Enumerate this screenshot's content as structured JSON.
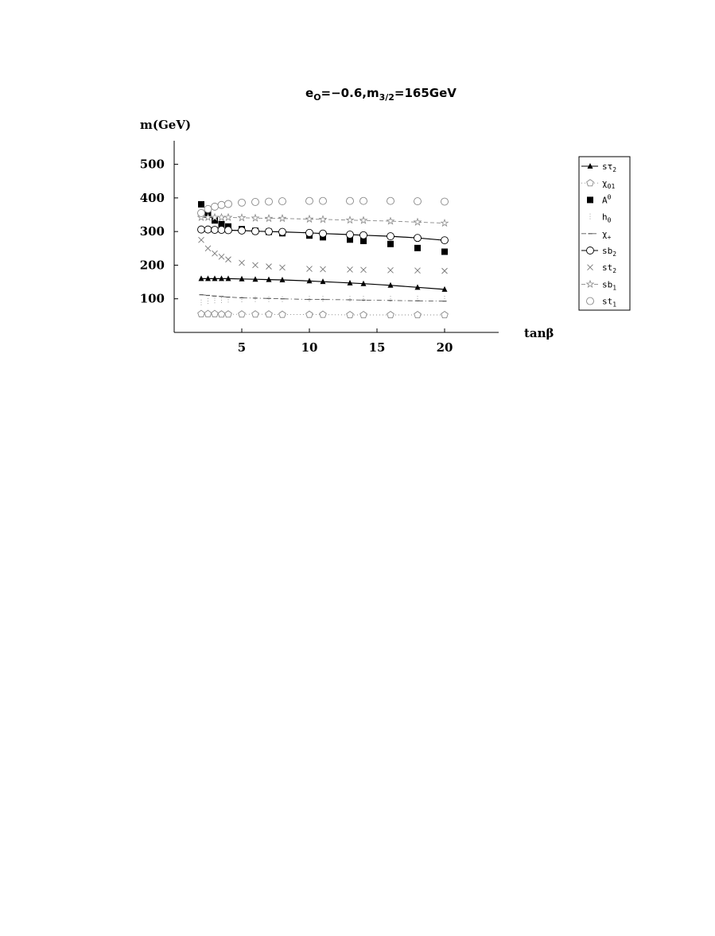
{
  "chart_data": {
    "type": "scatter",
    "title": "e",
    "title_sub": "O",
    "title_mid": "=−0.6,m",
    "title_sub2": "3/2",
    "title_end": "=165GeV",
    "ylabel": "m(GeV)",
    "xlabel": "tanβ",
    "xlim": [
      0,
      24
    ],
    "ylim": [
      0,
      570
    ],
    "xticks": [
      5,
      10,
      15,
      20
    ],
    "yticks": [
      100,
      200,
      300,
      400,
      500
    ],
    "grid": false,
    "legend_position": "right",
    "x": [
      2,
      2.5,
      3,
      3.5,
      4,
      5,
      6,
      7,
      8,
      10,
      11,
      13,
      14,
      16,
      18,
      20
    ],
    "series": [
      {
        "name": "sτ",
        "sub": "2",
        "marker": "triangle",
        "line": "solid",
        "color": "#000000",
        "values": [
          160,
          160,
          160,
          160,
          160,
          159,
          158,
          157,
          156,
          153,
          151,
          147,
          145,
          140,
          134,
          128
        ]
      },
      {
        "name": "χ",
        "sub": "01",
        "marker": "pentagon",
        "line": "dotted",
        "color": "#888888",
        "values": [
          55,
          55,
          55,
          54,
          54,
          54,
          54,
          54,
          53,
          53,
          53,
          52,
          52,
          52,
          52,
          52
        ]
      },
      {
        "name": "A",
        "sup": "0",
        "marker": "square",
        "line": "none",
        "color": "#000000",
        "values": [
          381,
          350,
          333,
          322,
          315,
          307,
          302,
          299,
          295,
          288,
          283,
          276,
          272,
          263,
          251,
          240
        ]
      },
      {
        "name": "h",
        "sub": "0",
        "marker": "dot",
        "line": "none",
        "color": "#888888",
        "values": [
          88,
          92,
          94,
          95,
          96,
          97,
          98,
          98,
          98,
          99,
          99,
          99,
          99,
          99,
          99,
          99
        ]
      },
      {
        "name": "χ",
        "sub": "+",
        "marker": "dash",
        "line": "dashdot",
        "color": "#555555",
        "values": [
          112,
          110,
          108,
          107,
          105,
          103,
          102,
          101,
          100,
          98,
          98,
          97,
          96,
          95,
          94,
          93
        ]
      },
      {
        "name": "sb",
        "sub": "2",
        "marker": "circle-line",
        "line": "solid",
        "color": "#000000",
        "values": [
          306,
          306,
          305,
          305,
          304,
          303,
          301,
          300,
          299,
          296,
          294,
          291,
          289,
          286,
          281,
          274
        ]
      },
      {
        "name": "st",
        "sub": "2",
        "marker": "cross",
        "line": "none",
        "color": "#777777",
        "values": [
          275,
          250,
          235,
          225,
          217,
          207,
          200,
          196,
          193,
          189,
          188,
          187,
          186,
          185,
          184,
          183
        ]
      },
      {
        "name": "sb",
        "sub": "1",
        "marker": "star",
        "line": "dashed",
        "color": "#888888",
        "values": [
          342,
          342,
          342,
          342,
          342,
          341,
          340,
          339,
          339,
          337,
          336,
          334,
          333,
          331,
          328,
          325
        ]
      },
      {
        "name": "st",
        "sub": "1",
        "marker": "circle",
        "line": "none",
        "color": "#888888",
        "values": [
          355,
          367,
          374,
          379,
          382,
          386,
          388,
          389,
          390,
          391,
          391,
          391,
          391,
          391,
          390,
          389
        ]
      }
    ]
  }
}
